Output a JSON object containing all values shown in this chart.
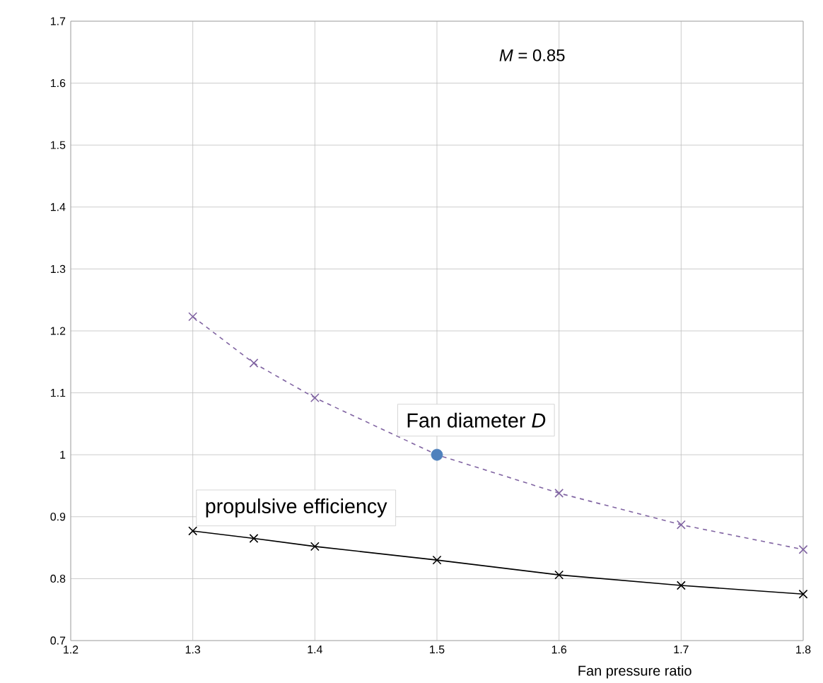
{
  "chart_data": {
    "type": "line",
    "xlabel": "Fan pressure ratio",
    "annotations": [
      "*M* = 0.85"
    ],
    "xlim": [
      1.2,
      1.8
    ],
    "ylim": [
      0.7,
      1.7
    ],
    "xticks": [
      1.2,
      1.3,
      1.4,
      1.5,
      1.6,
      1.7,
      1.8
    ],
    "yticks": [
      0.7,
      0.8,
      0.9,
      1,
      1.1,
      1.2,
      1.3,
      1.4,
      1.5,
      1.6,
      1.7
    ],
    "grid": true,
    "legend": false,
    "marker": "cross",
    "series": [
      {
        "name": "Fan diameter *D*",
        "color": "#8064a2",
        "line_style": "dashed",
        "x": [
          1.3,
          1.35,
          1.4,
          1.5,
          1.6,
          1.7,
          1.8
        ],
        "values": [
          1.223,
          1.148,
          1.092,
          1.0,
          0.938,
          0.887,
          0.847
        ]
      },
      {
        "name": "propulsive efficiency",
        "color": "#000000",
        "line_style": "solid",
        "x": [
          1.3,
          1.35,
          1.4,
          1.5,
          1.6,
          1.7,
          1.8
        ],
        "values": [
          0.877,
          0.865,
          0.852,
          0.83,
          0.806,
          0.789,
          0.775
        ]
      },
      {
        "type": "scatter",
        "color": "#4f81bd",
        "marker": "circle",
        "x": [
          1.5
        ],
        "values": [
          1.0
        ]
      }
    ]
  }
}
